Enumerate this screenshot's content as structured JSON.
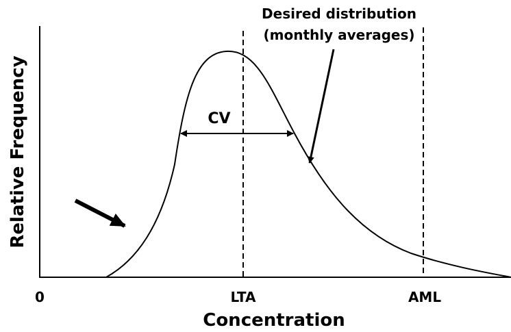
{
  "y_axis_label": "Relative Frequency",
  "x_axis_label": "Concentration",
  "x_labels": [
    "0",
    "LTA",
    "AML"
  ],
  "annotation": {
    "line1": "Desired distribution",
    "line2": "(monthly averages)"
  },
  "spread_label": "CV"
}
